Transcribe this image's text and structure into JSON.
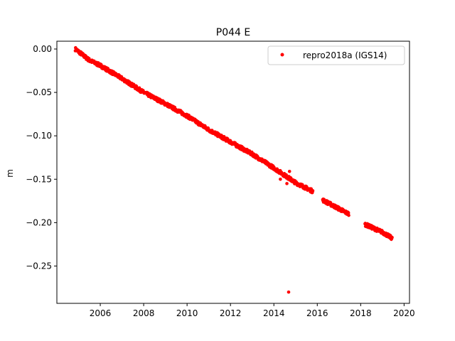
{
  "chart_data": {
    "type": "scatter",
    "title": "P044 E",
    "xlabel": "",
    "ylabel": "m",
    "xlim": [
      2004.0,
      2020.25
    ],
    "ylim": [
      -0.293,
      0.009
    ],
    "xticks": [
      2006,
      2008,
      2010,
      2012,
      2014,
      2016,
      2018,
      2020
    ],
    "yticks": [
      0.0,
      -0.05,
      -0.1,
      -0.15,
      -0.2,
      -0.25
    ],
    "ytick_labels": [
      "0.00",
      "−0.05",
      "−0.10",
      "−0.15",
      "−0.20",
      "−0.25"
    ],
    "grid": false,
    "legend_position": "top-right",
    "series": [
      {
        "name": "repro2018a (IGS14)",
        "color": "#ff0000",
        "marker": "circle",
        "segments": [
          {
            "x_start": 2004.85,
            "x_end": 2015.8,
            "trend": [
              [
                2004.85,
                0.0
              ],
              [
                2005.5,
                -0.013
              ],
              [
                2006.0,
                -0.019
              ],
              [
                2007.0,
                -0.034
              ],
              [
                2008.0,
                -0.05
              ],
              [
                2009.0,
                -0.063
              ],
              [
                2010.0,
                -0.077
              ],
              [
                2011.0,
                -0.093
              ],
              [
                2012.0,
                -0.107
              ],
              [
                2013.0,
                -0.121
              ],
              [
                2014.0,
                -0.137
              ],
              [
                2015.0,
                -0.154
              ],
              [
                2015.8,
                -0.164
              ]
            ],
            "spread": 0.002
          },
          {
            "x_start": 2016.25,
            "x_end": 2017.45,
            "trend": [
              [
                2016.25,
                -0.174
              ],
              [
                2017.0,
                -0.184
              ],
              [
                2017.45,
                -0.19
              ]
            ],
            "spread": 0.002
          },
          {
            "x_start": 2018.2,
            "x_end": 2019.45,
            "trend": [
              [
                2018.2,
                -0.202
              ],
              [
                2019.0,
                -0.211
              ],
              [
                2019.45,
                -0.218
              ]
            ],
            "spread": 0.002
          }
        ],
        "outliers": [
          {
            "x": 2014.68,
            "y": -0.28
          },
          {
            "x": 2014.72,
            "y": -0.141
          },
          {
            "x": 2014.6,
            "y": -0.155
          },
          {
            "x": 2014.3,
            "y": -0.15
          }
        ]
      }
    ]
  }
}
